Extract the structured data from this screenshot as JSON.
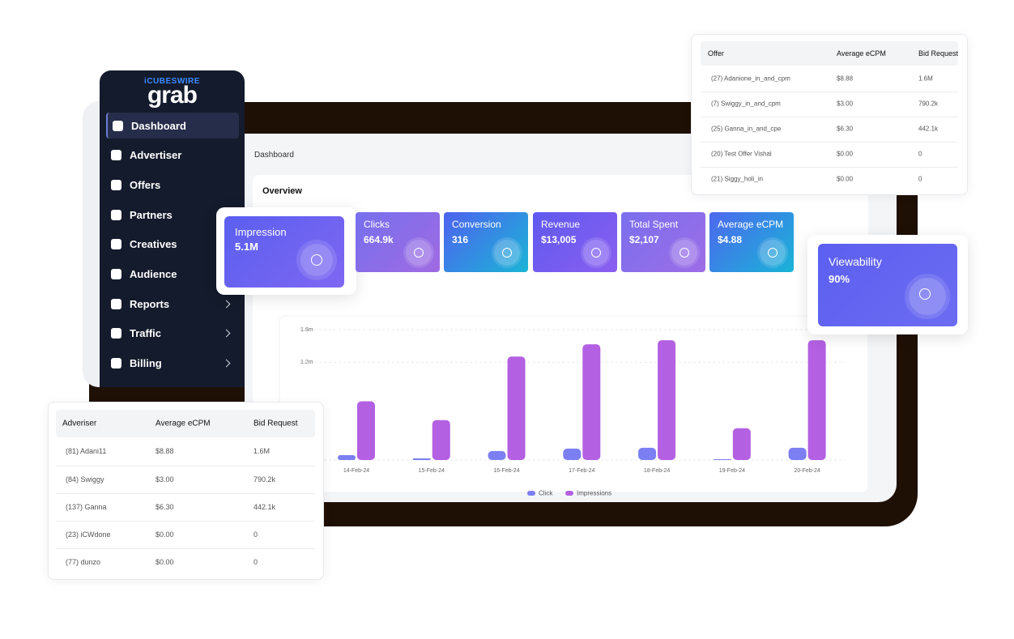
{
  "brand": {
    "top": "iCUBESWIRE",
    "logo": "grab"
  },
  "sidebar": [
    "Dashboard",
    "Advertiser",
    "Offers",
    "Partners",
    "Creatives",
    "Audience",
    "Reports",
    "Traffic",
    "Billing"
  ],
  "breadcrumb": "Dashboard",
  "overview": "Overview",
  "stats": [
    {
      "label": "Impression",
      "value": "5.1M"
    },
    {
      "label": "Clicks",
      "value": "664.9k"
    },
    {
      "label": "Conversion",
      "value": "316"
    },
    {
      "label": "Revenue",
      "value": "$13,005"
    },
    {
      "label": "Total Spent",
      "value": "$2,107"
    },
    {
      "label": "Average eCPM",
      "value": "$4.88"
    }
  ],
  "viewability": {
    "label": "Viewability",
    "value": "90%"
  },
  "offer_table": {
    "header": [
      "Offer",
      "Average eCPM",
      "Bid Request"
    ],
    "rows": [
      [
        "(27) Adanione_in_and_cpm",
        "$8.88",
        "1.6M"
      ],
      [
        "(7) Swiggy_in_and_cpm",
        "$3.00",
        "790.2k"
      ],
      [
        "(25) Ganna_in_and_cpe",
        "$6.30",
        "442.1k"
      ],
      [
        "(20) Test Offer Vishal",
        "$0.00",
        "0"
      ],
      [
        "(21) Siggy_holi_in",
        "$0.00",
        "0"
      ]
    ]
  },
  "advertiser_table": {
    "header": [
      "Adveriser",
      "Average eCPM",
      "Bid Request"
    ],
    "rows": [
      [
        "(81) Adani11",
        "$8.88",
        "1.6M"
      ],
      [
        "(84) Swiggy",
        "$3.00",
        "790.2k"
      ],
      [
        "(137) Ganna",
        "$6.30",
        "442.1k"
      ],
      [
        "(23) iCWdone",
        "$0.00",
        "0"
      ],
      [
        "(77) dunzo",
        "$0.00",
        "0"
      ]
    ]
  },
  "chart_data": {
    "type": "bar",
    "categories": [
      "14-Feb-24",
      "15-Feb-24",
      "16-Feb-24",
      "17-Feb-24",
      "18-Feb-24",
      "19-Feb-24",
      "20-Feb-24"
    ],
    "series": [
      {
        "name": "Click",
        "color": "#7b7ff2",
        "values": [
          60000,
          20000,
          110000,
          140000,
          150000,
          10000,
          150000
        ]
      },
      {
        "name": "Impressions",
        "color": "#b360e2",
        "values": [
          720000,
          490000,
          1270000,
          1420000,
          1470000,
          390000,
          1470000
        ]
      }
    ],
    "ylim": [
      0,
      1600000
    ],
    "yticks": [
      {
        "value": 1200000,
        "label": "1.2m"
      },
      {
        "value": 1600000,
        "label": "1.6m"
      }
    ],
    "grid": true,
    "legend": "bottom"
  }
}
